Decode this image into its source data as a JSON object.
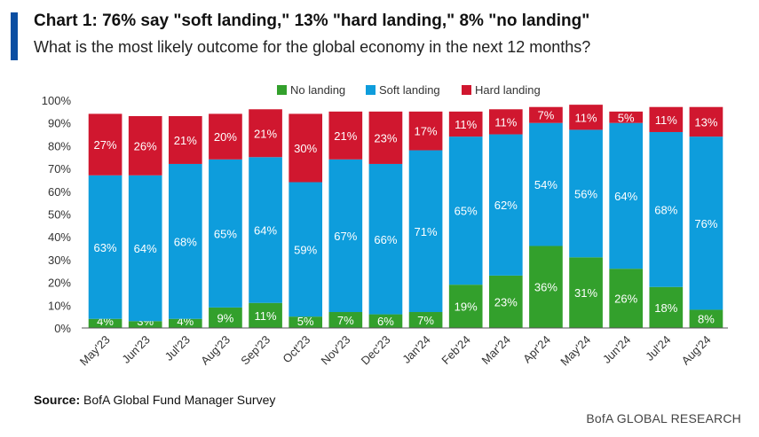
{
  "header": {
    "title": "Chart 1:  76% say \"soft landing,\" 13% \"hard landing,\" 8% \"no landing\"",
    "subtitle": "What is the most likely outcome for the global economy in the next 12 months?"
  },
  "footer": {
    "source_label": "Source:",
    "source_text": "BofA Global Fund Manager Survey",
    "brand": "BofA GLOBAL RESEARCH"
  },
  "chart_data": {
    "type": "bar",
    "stacked": true,
    "title": "76% say \"soft landing,\" 13% \"hard landing,\" 8% \"no landing\"",
    "xlabel": "",
    "ylabel": "",
    "ylim": [
      0,
      100
    ],
    "yticks": [
      "0%",
      "10%",
      "20%",
      "30%",
      "40%",
      "50%",
      "60%",
      "70%",
      "80%",
      "90%",
      "100%"
    ],
    "grid": false,
    "legend_position": "top-center",
    "categories": [
      "May'23",
      "Jun'23",
      "Jul'23",
      "Aug'23",
      "Sep'23",
      "Oct'23",
      "Nov'23",
      "Dec'23",
      "Jan'24",
      "Feb'24",
      "Mar'24",
      "Apr'24",
      "May'24",
      "Jun'24",
      "Jul'24",
      "Aug'24"
    ],
    "series": [
      {
        "name": "No landing",
        "color": "#33a02c",
        "values": [
          4,
          3,
          4,
          9,
          11,
          5,
          7,
          6,
          7,
          19,
          23,
          36,
          31,
          26,
          18,
          8
        ]
      },
      {
        "name": "Soft landing",
        "color": "#0e9ddc",
        "values": [
          63,
          64,
          68,
          65,
          64,
          59,
          67,
          66,
          71,
          65,
          62,
          54,
          56,
          64,
          68,
          76
        ]
      },
      {
        "name": "Hard landing",
        "color": "#d0172f",
        "values": [
          27,
          26,
          21,
          20,
          21,
          30,
          21,
          23,
          17,
          11,
          11,
          7,
          11,
          5,
          11,
          13
        ]
      }
    ]
  }
}
